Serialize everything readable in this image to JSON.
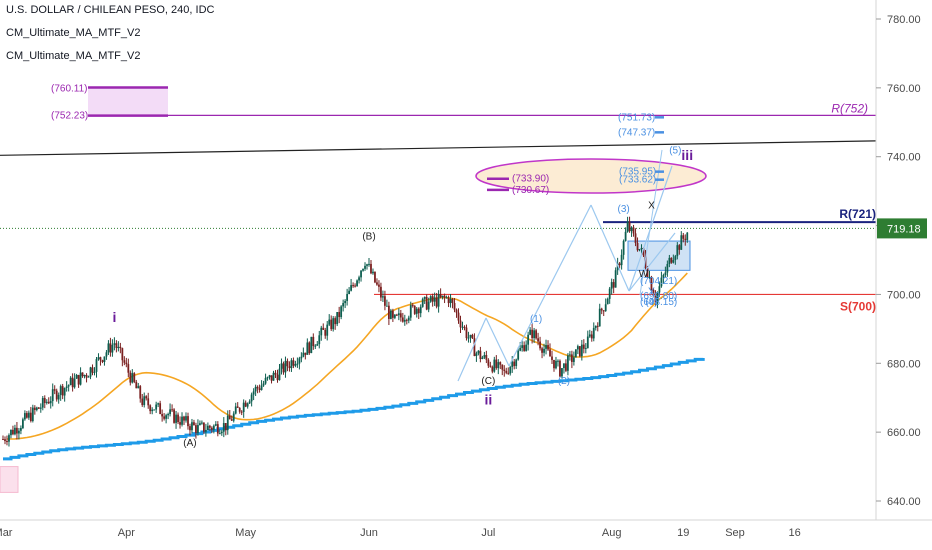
{
  "header": {
    "title": "U.S. DOLLAR / CHILEAN PESO, 240, IDC",
    "indicators": [
      "CM_Ultimate_MA_MTF_V2",
      "CM_Ultimate_MA_MTF_V2"
    ]
  },
  "colors": {
    "up_candle": "#0d5e4f",
    "down_candle": "#7a1f1f",
    "ma_slow": "#1e9be9",
    "ma_fast": "#f5a623",
    "resistance_purple": "#9b27b0",
    "resistance_navy": "#1a237e",
    "support_red": "#e53935",
    "trend_line": "#222222",
    "current_price": "#2e7d32",
    "wave_blue": "#4a90e2",
    "fib_box": "#f0c060"
  },
  "chart_data": {
    "type": "candlestick",
    "title": "U.S. DOLLAR / CHILEAN PESO, 240, IDC",
    "ylim": [
      635,
      787
    ],
    "yticks": [
      "780.00",
      "760.00",
      "740.00",
      "720.00",
      "700.00",
      "680.00",
      "660.00",
      "640.00"
    ],
    "xticks": [
      "Mar",
      "Apr",
      "May",
      "Jun",
      "Jul",
      "Aug",
      "19",
      "Sep",
      "16"
    ],
    "current_price": "719.18",
    "price_path": [
      [
        "Mar 1",
        658
      ],
      [
        "Mar 8",
        665
      ],
      [
        "Mar 15",
        672
      ],
      [
        "Mar 22",
        677
      ],
      [
        "Mar 29",
        686
      ],
      [
        "Apr 5",
        669
      ],
      [
        "Apr 12",
        665
      ],
      [
        "Apr 19",
        661
      ],
      [
        "Apr 26",
        662
      ],
      [
        "May 3",
        672
      ],
      [
        "May 10",
        678
      ],
      [
        "May 17",
        685
      ],
      [
        "May 24",
        693
      ],
      [
        "May 31",
        710
      ],
      [
        "Jun 7",
        692
      ],
      [
        "Jun 14",
        697
      ],
      [
        "Jun 21",
        699
      ],
      [
        "Jun 28",
        683
      ],
      [
        "Jul 5",
        677
      ],
      [
        "Jul 12",
        689
      ],
      [
        "Jul 19",
        678
      ],
      [
        "Jul 26",
        686
      ],
      [
        "Aug 2",
        705
      ],
      [
        "Aug 5",
        720
      ],
      [
        "Aug 9",
        711
      ],
      [
        "Aug 12",
        699
      ],
      [
        "Aug 16",
        711
      ],
      [
        "Aug 20",
        718
      ]
    ],
    "levels": [
      {
        "label": "R(752)",
        "value": 752,
        "color": "#9b27b0"
      },
      {
        "label": "R(721)",
        "value": 721,
        "color": "#1a237e"
      },
      {
        "label": "S(700)",
        "value": 700,
        "color": "#e53935"
      }
    ],
    "wave_labels": [
      {
        "text": "i",
        "x": "Mar 29",
        "y": 692,
        "color": "#6a1b9a"
      },
      {
        "text": "(A)",
        "x": "Apr 17",
        "y": 656,
        "color": "#222222"
      },
      {
        "text": "(B)",
        "x": "Jun 1",
        "y": 716,
        "color": "#222222"
      },
      {
        "text": "(C)",
        "x": "Jul 1",
        "y": 674,
        "color": "#222222"
      },
      {
        "text": "ii",
        "x": "Jul 1",
        "y": 668,
        "color": "#6a1b9a"
      },
      {
        "text": "(1)",
        "x": "Jul 13",
        "y": 692,
        "color": "#4a90e2"
      },
      {
        "text": "(2)",
        "x": "Jul 20",
        "y": 674,
        "color": "#4a90e2"
      },
      {
        "text": "(3)",
        "x": "Aug 4",
        "y": 724,
        "color": "#4a90e2"
      },
      {
        "text": "X",
        "x": "Aug 11",
        "y": 725,
        "color": "#222222"
      },
      {
        "text": "W",
        "x": "Aug 9",
        "y": 705,
        "color": "#222222"
      },
      {
        "text": "Y",
        "x": "Aug 11",
        "y": 700,
        "color": "#4a90e2"
      },
      {
        "text": "(4)",
        "x": "Aug 11",
        "y": 697,
        "color": "#4a90e2"
      },
      {
        "text": "(5)",
        "x": "Aug 17",
        "y": 741,
        "color": "#4a90e2"
      },
      {
        "text": "iii",
        "x": "Aug 20",
        "y": 739,
        "color": "#6a1b9a"
      }
    ],
    "target_labels": [
      {
        "text": "(760.11)",
        "value": 760.11,
        "color": "#9b27b0"
      },
      {
        "text": "(752.23)",
        "value": 752.23,
        "color": "#9b27b0"
      },
      {
        "text": "(751.73)",
        "value": 751.73,
        "color": "#4a90e2"
      },
      {
        "text": "(747.37)",
        "value": 747.37,
        "color": "#4a90e2"
      },
      {
        "text": "(735.95)",
        "value": 735.95,
        "color": "#4a90e2"
      },
      {
        "text": "(733.90)",
        "value": 733.9,
        "color": "#9b27b0"
      },
      {
        "text": "(733.62)",
        "value": 733.62,
        "color": "#4a90e2"
      },
      {
        "text": "(730.67)",
        "value": 730.67,
        "color": "#9b27b0"
      },
      {
        "text": "(704.21)",
        "value": 704.21,
        "color": "#4a90e2"
      },
      {
        "text": "(699.80)",
        "value": 699.8,
        "color": "#4a90e2"
      },
      {
        "text": "(698.15)",
        "value": 698.15,
        "color": "#4a90e2"
      }
    ],
    "grid": false,
    "legend": "top-left"
  }
}
